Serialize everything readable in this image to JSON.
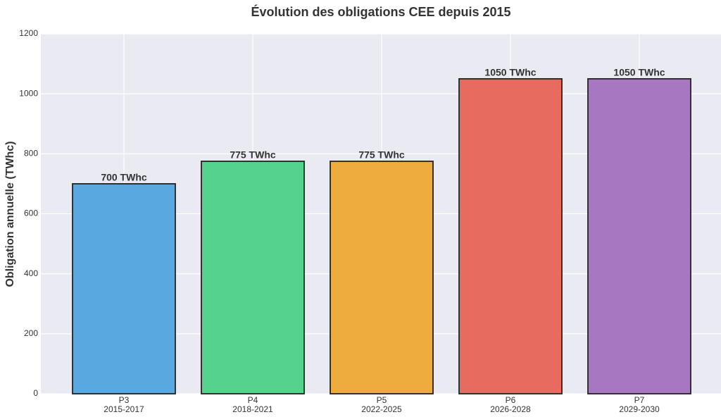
{
  "chart_data": {
    "type": "bar",
    "title": "Évolution des obligations CEE depuis 2015",
    "y_label": "Obligation annuelle (TWhc)",
    "categories": [
      [
        "P3",
        "2015-2017"
      ],
      [
        "P4",
        "2018-2021"
      ],
      [
        "P5",
        "2022-2025"
      ],
      [
        "P6",
        "2026-2028"
      ],
      [
        "P7",
        "2029-2030"
      ]
    ],
    "values": [
      700,
      775,
      775,
      1050,
      1050
    ],
    "value_labels": [
      "700 TWhc",
      "775 TWhc",
      "775 TWhc",
      "1050 TWhc",
      "1050 TWhc"
    ],
    "colors": [
      "#5aa8e0",
      "#55d38c",
      "#eeab3e",
      "#e86b60",
      "#a877c2"
    ],
    "ylim": [
      0,
      1200
    ],
    "yticks": [
      0,
      200,
      400,
      600,
      800,
      1000,
      1200
    ],
    "grid": true
  }
}
